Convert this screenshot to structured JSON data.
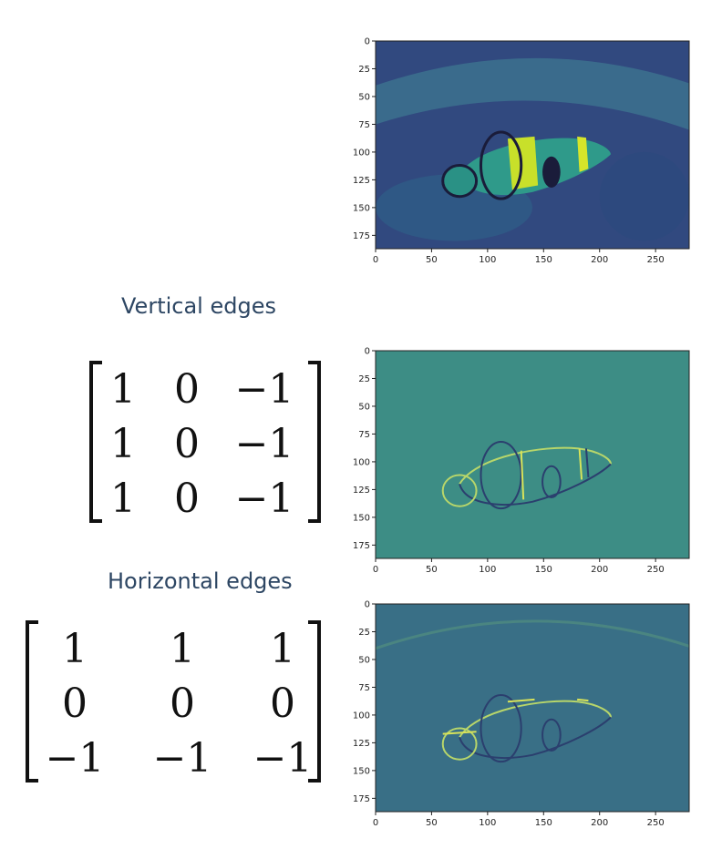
{
  "captions": {
    "vertical": "Vertical edges",
    "horizontal": "Horizontal edges"
  },
  "matrices": {
    "vertical": [
      [
        "1",
        "0",
        "−1"
      ],
      [
        "1",
        "0",
        "−1"
      ],
      [
        "1",
        "0",
        "−1"
      ]
    ],
    "horizontal": [
      [
        "1",
        "1",
        "1"
      ],
      [
        "0",
        "0",
        "0"
      ],
      [
        "−1",
        "−1",
        "−1"
      ]
    ]
  },
  "axes": {
    "x_ticks": [
      "0",
      "50",
      "100",
      "150",
      "200",
      "250"
    ],
    "y_ticks": [
      "0",
      "25",
      "50",
      "75",
      "100",
      "125",
      "150",
      "175"
    ],
    "x_range": [
      0,
      280
    ],
    "y_range": [
      0,
      187
    ]
  },
  "panels": [
    {
      "name": "original-image"
    },
    {
      "name": "vertical-edges-image"
    },
    {
      "name": "horizontal-edges-image"
    }
  ]
}
